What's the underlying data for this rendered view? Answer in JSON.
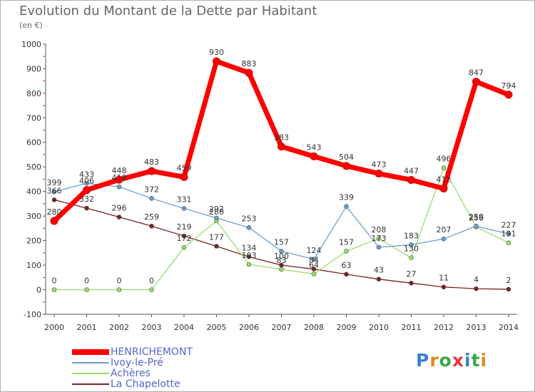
{
  "title": "Evolution du Montant de la Dette par Habitant",
  "subtitle": "(en €)",
  "logo": {
    "text": "Proxiti",
    "colors": [
      "#3a7fd0",
      "#e08a1e",
      "#39a84a",
      "#e03a3a",
      "#3a7fd0",
      "#39a84a",
      "#e08a1e"
    ]
  },
  "chart_data": {
    "type": "line",
    "x": [
      "2000",
      "2001",
      "2002",
      "2003",
      "2004",
      "2005",
      "2006",
      "2007",
      "2008",
      "2009",
      "2010",
      "2011",
      "2012",
      "2013",
      "2014"
    ],
    "y_ticks": [
      "-100",
      "0",
      "100",
      "200",
      "300",
      "400",
      "500",
      "600",
      "700",
      "800",
      "900",
      "1000"
    ],
    "ylim": [
      -100,
      1000
    ],
    "grid": false,
    "legend_position": "bottom-left",
    "series": [
      {
        "name": "HENRICHEMONT",
        "color": "#ff0000",
        "values": [
          280,
          406,
          448,
          483,
          459,
          930,
          883,
          583,
          543,
          504,
          473,
          447,
          412,
          847,
          794
        ]
      },
      {
        "name": "Ivoy-le-Pré",
        "color": "#6a9fd0",
        "values": [
          399,
          433,
          419,
          372,
          331,
          292,
          253,
          157,
          124,
          339,
          173,
          183,
          207,
          259,
          227
        ]
      },
      {
        "name": "Achères",
        "color": "#99dd66",
        "values": [
          0,
          0,
          0,
          0,
          172,
          280,
          103,
          83,
          64,
          157,
          208,
          130,
          496,
          256,
          191
        ]
      },
      {
        "name": "La Chapelotte",
        "color": "#772222",
        "values": [
          366,
          332,
          296,
          259,
          219,
          177,
          134,
          100,
          84,
          63,
          43,
          27,
          11,
          4,
          2
        ]
      }
    ]
  }
}
